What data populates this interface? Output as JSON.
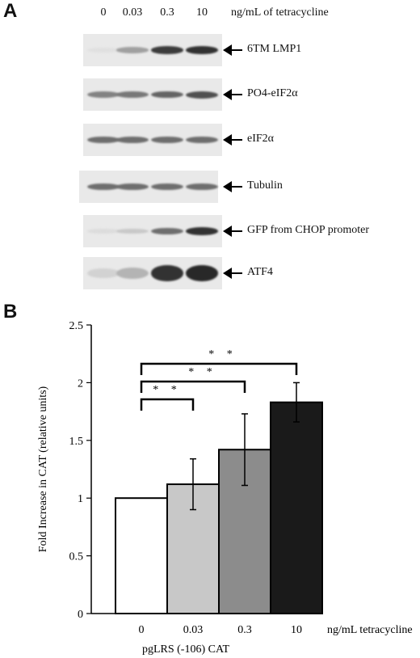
{
  "panel_a": {
    "letter": "A",
    "lanes": [
      "0",
      "0.03",
      "0.3",
      "10"
    ],
    "lane_unit": "ng/mL of tetracycline",
    "blots": [
      {
        "label": "6TM LMP1",
        "intensities": [
          0.03,
          0.35,
          0.85,
          0.9
        ]
      },
      {
        "label": "PO4-eIF2α",
        "intensities": [
          0.5,
          0.55,
          0.65,
          0.75
        ]
      },
      {
        "label": "eIF2α",
        "intensities": [
          0.6,
          0.6,
          0.6,
          0.6
        ]
      },
      {
        "label": "Tubulin",
        "intensities": [
          0.6,
          0.6,
          0.6,
          0.6
        ]
      },
      {
        "label": "GFP from CHOP promoter",
        "intensities": [
          0.05,
          0.15,
          0.6,
          0.9
        ]
      },
      {
        "label": "ATF4",
        "intensities": [
          0.1,
          0.25,
          0.9,
          0.95
        ]
      }
    ]
  },
  "panel_b": {
    "letter": "B",
    "chart_data": {
      "type": "bar",
      "categories": [
        "0",
        "0.03",
        "0.3",
        "10"
      ],
      "values": [
        1.0,
        1.12,
        1.42,
        1.83
      ],
      "errors": [
        0,
        0.22,
        0.31,
        0.17
      ],
      "ylabel": "Fold Increase in CAT (relative units)",
      "xlabel": "pgLRS (-106) CAT",
      "x_unit": "ng/mL tetracycline",
      "ylim": [
        0,
        2.5
      ],
      "yticks": [
        "0",
        "0.5",
        "1",
        "1.5",
        "2",
        "2.5"
      ],
      "bar_colors": [
        "#ffffff",
        "#c8c8c8",
        "#8c8c8c",
        "#1a1a1a"
      ],
      "significance": [
        {
          "from": "0",
          "to": "0.03",
          "label": "* *"
        },
        {
          "from": "0",
          "to": "0.3",
          "label": "* *"
        },
        {
          "from": "0",
          "to": "10",
          "label": "* *"
        }
      ]
    }
  }
}
